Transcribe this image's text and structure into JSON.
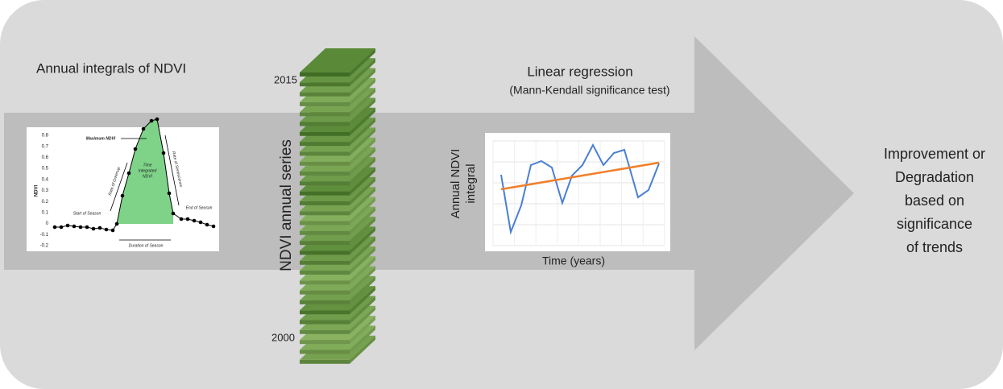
{
  "left_panel": {
    "title": "Annual integrals of NDVI",
    "inset": {
      "y_axis_label": "NDVI",
      "y_tick_labels": [
        "0.8",
        "0.7",
        "0.6",
        "0.5",
        "0.4",
        "0.3",
        "0.2",
        "0.1",
        "0",
        "-0.1",
        "-0.2"
      ],
      "maximum": "Maximum NDVI",
      "greenup": "Rate of Greenup",
      "senescence": "Rate of Senescence",
      "integrated": [
        "Time",
        "Integrated",
        "NDVI"
      ],
      "start": "Start of Season",
      "end": "End of Season",
      "duration": "Duration of Season"
    }
  },
  "stack": {
    "top_label": "2015",
    "bottom_label": "2000",
    "axis_label": "NDVI annual series"
  },
  "regression": {
    "title": "Linear regression",
    "subtitle": "(Mann-Kendall significance test)",
    "y_label": [
      "Annual NDVI",
      "integral"
    ],
    "x_label": "Time (years)"
  },
  "outcome": {
    "lines": [
      "Improvement or",
      "Degradation",
      "based on",
      "significance",
      "of trends"
    ]
  }
}
